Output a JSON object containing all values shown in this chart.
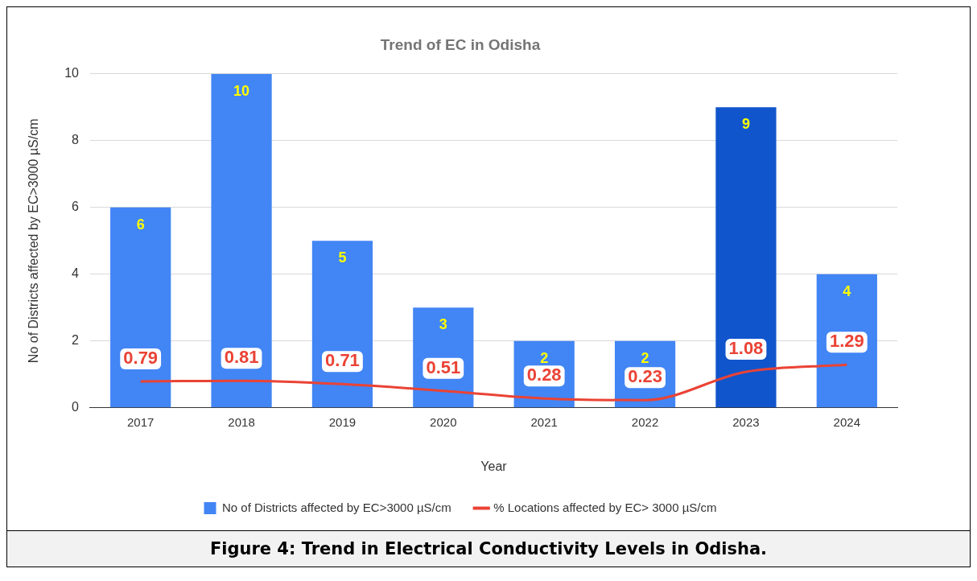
{
  "chart_data": {
    "type": "bar",
    "title": "Trend of EC in Odisha",
    "xlabel": "Year",
    "ylabel": "No of Districts affected by EC>3000 µS/cm",
    "categories": [
      "2017",
      "2018",
      "2019",
      "2020",
      "2021",
      "2022",
      "2023",
      "2024"
    ],
    "series": [
      {
        "name": "No of Districts affected by EC>3000 µS/cm",
        "colors": [
          "#4285f4",
          "#4285f4",
          "#4285f4",
          "#4285f4",
          "#4285f4",
          "#4285f4",
          "#1155cc",
          "#4285f4"
        ],
        "values": [
          6,
          10,
          5,
          3,
          2,
          2,
          9,
          4
        ]
      },
      {
        "name": "% Locations affected by EC> 3000 µS/cm",
        "type": "line",
        "color": "#ea4335",
        "values": [
          0.79,
          0.81,
          0.71,
          0.51,
          0.28,
          0.23,
          1.08,
          1.29
        ]
      }
    ],
    "ylim": [
      0,
      10
    ],
    "yticks": [
      0,
      2,
      4,
      6,
      8,
      10
    ],
    "grid": "y",
    "legend": "bottom",
    "data_labels": true,
    "marker": "none",
    "line_style": "solid",
    "annotations": [
      "Figure 4: Trend in Electrical Conductivity Levels in Odisha."
    ]
  }
}
